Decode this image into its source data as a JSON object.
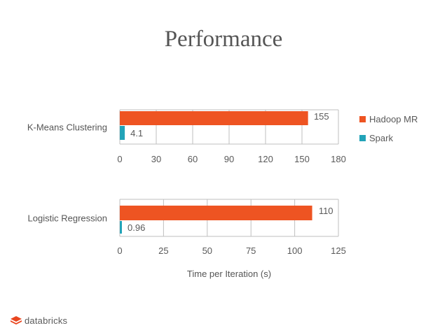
{
  "slide": {
    "title": "Performance",
    "logo_text": "databricks"
  },
  "chart_data": [
    {
      "type": "bar",
      "orientation": "horizontal",
      "category": "K-Means Clustering",
      "series": [
        {
          "name": "Hadoop MR",
          "value": 155,
          "label": "155",
          "color": "#ee5422"
        },
        {
          "name": "Spark",
          "value": 4.1,
          "label": "4.1",
          "color": "#22a3b8"
        }
      ],
      "xlim": [
        0,
        180
      ],
      "xticks": [
        0,
        30,
        60,
        90,
        120,
        150,
        180
      ],
      "grid": true,
      "legend": {
        "position": "right",
        "entries": [
          "Hadoop MR",
          "Spark"
        ]
      }
    },
    {
      "type": "bar",
      "orientation": "horizontal",
      "category": "Logistic Regression",
      "series": [
        {
          "name": "Hadoop MR",
          "value": 110,
          "label": "110",
          "color": "#ee5422"
        },
        {
          "name": "Spark",
          "value": 0.96,
          "label": "0.96",
          "color": "#22a3b8"
        }
      ],
      "xlim": [
        0,
        125
      ],
      "xticks": [
        0,
        25,
        50,
        75,
        100,
        125
      ],
      "xlabel": "Time per Iteration (s)",
      "grid": true
    }
  ]
}
